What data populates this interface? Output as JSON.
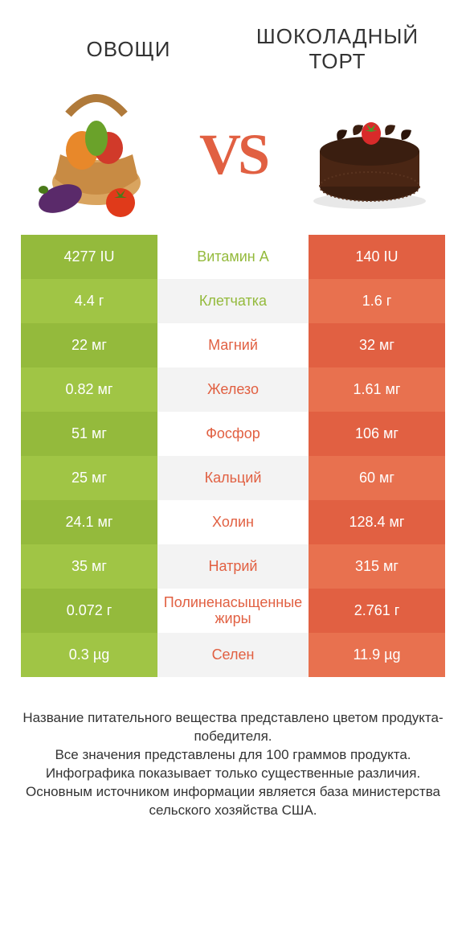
{
  "titles": {
    "left": "ОВОЩИ",
    "right": "ШОКОЛАДНЫЙ ТОРТ"
  },
  "vs": "VS",
  "colors": {
    "left_main": "#94ba3c",
    "left_alt": "#a0c545",
    "right_main": "#e16042",
    "right_alt": "#e8714f",
    "mid_bg_a": "#ffffff",
    "mid_bg_b": "#f3f3f3",
    "mid_text_left": "#94ba3c",
    "mid_text_right": "#e16042",
    "title_color": "#333333",
    "footer_color": "#333333"
  },
  "rows": [
    {
      "left": "4277 IU",
      "mid": "Витамин A",
      "right": "140 IU",
      "winner": "left"
    },
    {
      "left": "4.4 г",
      "mid": "Клетчатка",
      "right": "1.6 г",
      "winner": "left"
    },
    {
      "left": "22 мг",
      "mid": "Магний",
      "right": "32 мг",
      "winner": "right"
    },
    {
      "left": "0.82 мг",
      "mid": "Железо",
      "right": "1.61 мг",
      "winner": "right"
    },
    {
      "left": "51 мг",
      "mid": "Фосфор",
      "right": "106 мг",
      "winner": "right"
    },
    {
      "left": "25 мг",
      "mid": "Кальций",
      "right": "60 мг",
      "winner": "right"
    },
    {
      "left": "24.1 мг",
      "mid": "Холин",
      "right": "128.4 мг",
      "winner": "right"
    },
    {
      "left": "35 мг",
      "mid": "Натрий",
      "right": "315 мг",
      "winner": "right"
    },
    {
      "left": "0.072 г",
      "mid": "Полиненасыщенные жиры",
      "right": "2.761 г",
      "winner": "right"
    },
    {
      "left": "0.3 µg",
      "mid": "Селен",
      "right": "11.9 µg",
      "winner": "right"
    }
  ],
  "footer_lines": [
    "Название питательного вещества представлено цветом продукта-победителя.",
    "Все значения представлены для 100 граммов продукта.",
    "Инфографика показывает только существенные различия.",
    "Основным источником информации является база министерства сельского хозяйства США."
  ]
}
